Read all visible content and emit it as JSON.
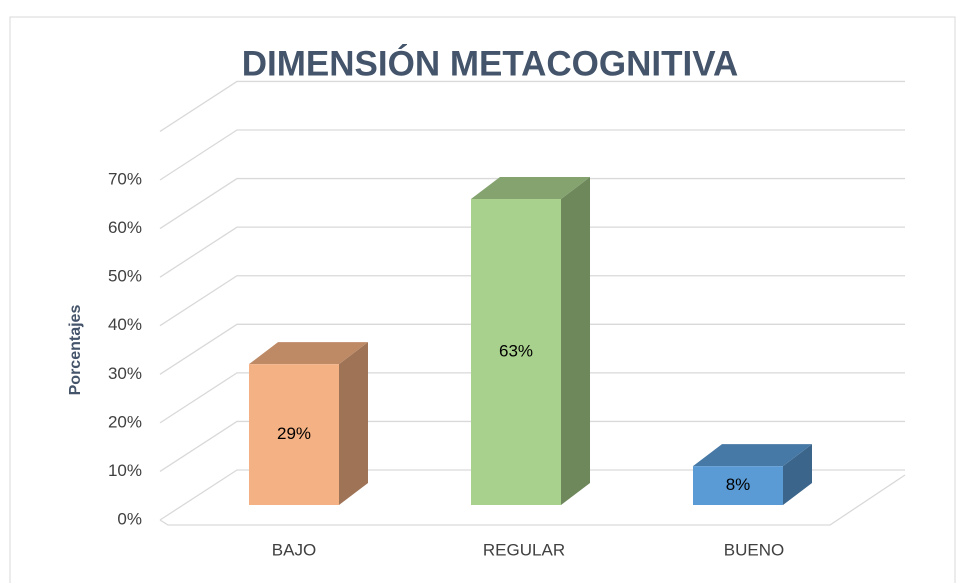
{
  "chart_data": {
    "type": "bar3d",
    "title": "DIMENSIÓN METACOGNITIVA",
    "y_label": "Porcentajes",
    "categories": [
      "BAJO",
      "REGULAR",
      "BUENO"
    ],
    "values": [
      29,
      63,
      8
    ],
    "value_labels": [
      "29%",
      "63%",
      "8%"
    ],
    "colors": [
      "#f4b183",
      "#a9d18e",
      "#5b9bd5"
    ],
    "ylim": [
      0,
      80
    ],
    "yticks": [
      {
        "value": 0,
        "label": "0%"
      },
      {
        "value": 10,
        "label": "10%"
      },
      {
        "value": 20,
        "label": "20%"
      },
      {
        "value": 30,
        "label": "30%"
      },
      {
        "value": 40,
        "label": "40%"
      },
      {
        "value": 50,
        "label": "50%"
      },
      {
        "value": 60,
        "label": "60%"
      },
      {
        "value": 70,
        "label": "70%"
      }
    ],
    "grid": true
  }
}
